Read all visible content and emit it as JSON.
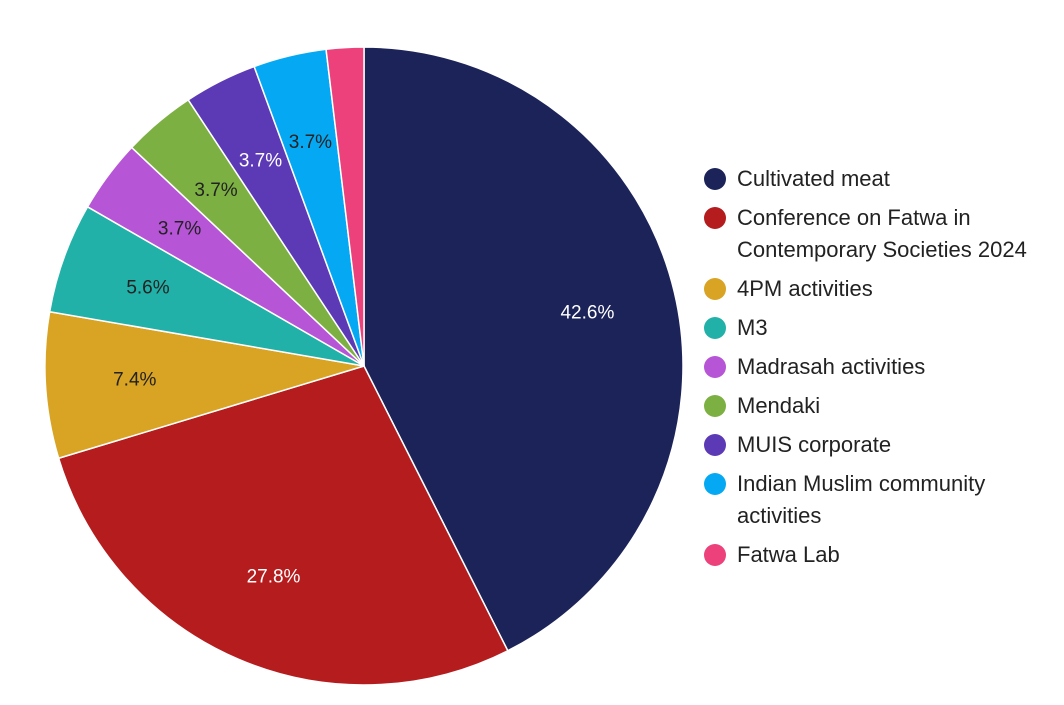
{
  "chart_data": {
    "type": "pie",
    "title": "",
    "start_angle_deg": 0,
    "direction": "clockwise",
    "legend_position": "right",
    "slices": [
      {
        "label": "Cultivated meat",
        "value": 42.6,
        "display": "42.6%",
        "color": "#1c2358",
        "label_color": "#ffffff"
      },
      {
        "label": "Conference on Fatwa in Contemporary Societies 2024",
        "value": 27.8,
        "display": "27.8%",
        "color": "#b41c1e",
        "label_color": "#ffffff"
      },
      {
        "label": "4PM activities",
        "value": 7.4,
        "display": "7.4%",
        "color": "#d9a323",
        "label_color": "#222222"
      },
      {
        "label": "M3",
        "value": 5.6,
        "display": "5.6%",
        "color": "#21b1a8",
        "label_color": "#222222"
      },
      {
        "label": "Madrasah activities",
        "value": 3.7,
        "display": "3.7%",
        "color": "#b655d6",
        "label_color": "#222222"
      },
      {
        "label": "Mendaki",
        "value": 3.7,
        "display": "3.7%",
        "color": "#7db043",
        "label_color": "#222222"
      },
      {
        "label": "MUIS corporate",
        "value": 3.7,
        "display": "3.7%",
        "color": "#5c3ab6",
        "label_color": "#ffffff"
      },
      {
        "label": "Indian Muslim community activities",
        "value": 3.7,
        "display": "3.7%",
        "color": "#05a9f3",
        "label_color": "#222222"
      },
      {
        "label": "Fatwa Lab",
        "value": 1.9,
        "display": "",
        "color": "#ec417a",
        "label_color": "#222222"
      }
    ]
  },
  "legend": {
    "items": [
      {
        "label": "Cultivated meat",
        "color": "#1c2358"
      },
      {
        "label": "Conference on Fatwa in Contemporary Societies 2024",
        "color": "#b41c1e"
      },
      {
        "label": "4PM activities",
        "color": "#d9a323"
      },
      {
        "label": "M3",
        "color": "#21b1a8"
      },
      {
        "label": "Madrasah activities",
        "color": "#b655d6"
      },
      {
        "label": "Mendaki",
        "color": "#7db043"
      },
      {
        "label": "MUIS corporate",
        "color": "#5c3ab6"
      },
      {
        "label": "Indian Muslim community activities",
        "color": "#05a9f3"
      },
      {
        "label": "Fatwa Lab",
        "color": "#ec417a"
      }
    ]
  }
}
